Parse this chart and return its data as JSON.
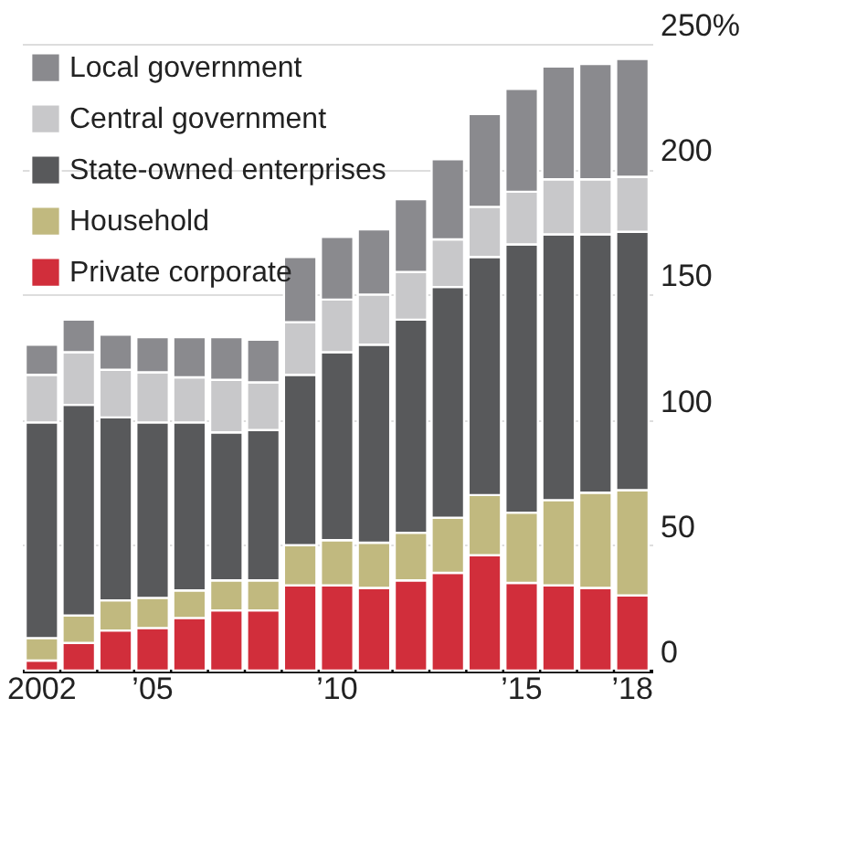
{
  "chart_data": {
    "type": "bar",
    "stacked": true,
    "categories": [
      "2002",
      null,
      null,
      "’05",
      null,
      null,
      null,
      null,
      "’10",
      null,
      null,
      null,
      null,
      "’15",
      null,
      null,
      "’18"
    ],
    "series": [
      {
        "name": "Private corporate",
        "color": "#d12e3b",
        "values": [
          4,
          11,
          16,
          17,
          21,
          24,
          24,
          34,
          34,
          33,
          36,
          39,
          46,
          35,
          34,
          33,
          30
        ]
      },
      {
        "name": "Household",
        "color": "#c1b97f",
        "values": [
          9,
          11,
          12,
          12,
          11,
          12,
          12,
          16,
          18,
          18,
          19,
          22,
          24,
          28,
          34,
          38,
          42
        ]
      },
      {
        "name": "State-owned enterprises",
        "color": "#58595b",
        "values": [
          86,
          84,
          73,
          70,
          67,
          59,
          60,
          68,
          75,
          79,
          85,
          92,
          95,
          107,
          106,
          103,
          103
        ]
      },
      {
        "name": "Central government",
        "color": "#c8c8ca",
        "values": [
          19,
          21,
          19,
          20,
          18,
          21,
          19,
          21,
          21,
          20,
          19,
          19,
          20,
          21,
          22,
          22,
          22
        ]
      },
      {
        "name": "Local government",
        "color": "#8a8a8e",
        "values": [
          12,
          13,
          14,
          14,
          16,
          17,
          17,
          26,
          25,
          26,
          29,
          32,
          37,
          41,
          45,
          46,
          47
        ]
      }
    ],
    "ylim": [
      0,
      250
    ],
    "yticks": [
      0,
      50,
      100,
      150,
      200,
      {
        "value": 250,
        "label": "250%"
      }
    ],
    "grid": "y",
    "legend": "top left"
  }
}
